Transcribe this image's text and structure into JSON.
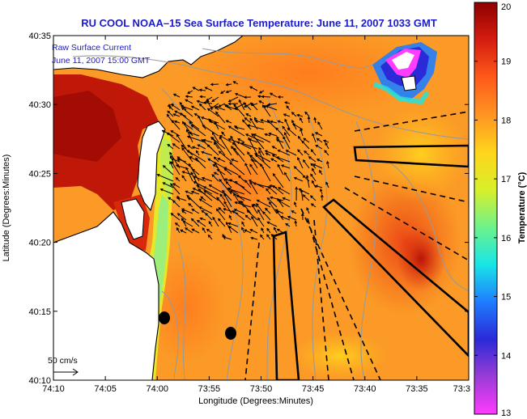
{
  "title": "RU COOL  NOAA–15  Sea Surface Temperature:  June 11, 2007 1033 GMT",
  "overlay": {
    "line1": "Raw Surface Current",
    "line2": "June 11, 2007 15:00 GMT"
  },
  "scale_label": "50 cm/s",
  "x_axis": {
    "label": "Longitude (Degrees:Minutes)",
    "ticks": [
      "74:10",
      "74:05",
      "74:00",
      "73:55",
      "73:50",
      "73:45",
      "73:40",
      "73:35",
      "73:3"
    ]
  },
  "y_axis": {
    "label": "Latitude (Degrees:Minutes)",
    "ticks": [
      "40:35",
      "40:30",
      "40:25",
      "40:20",
      "40:15",
      "40:10"
    ]
  },
  "colorbar": {
    "label": "Temperature (°C)",
    "ticks": [
      "20",
      "19",
      "18",
      "17",
      "16",
      "15",
      "14",
      "13"
    ],
    "stops": [
      "#8e0000",
      "#d51d10",
      "#ff5a1a",
      "#ff9422",
      "#ffd51c",
      "#d8ef2a",
      "#6ff28a",
      "#18e6e6",
      "#1f7dff",
      "#2a2ad8",
      "#9a3cd6",
      "#ff3cff"
    ]
  },
  "colors": {
    "sea_base": "#fb9a26",
    "land": "#ffffff",
    "coast": "#000000",
    "contour": "#9a9a9a",
    "text_blue": "#1a1acc"
  },
  "markers": [
    "filled-circle",
    "filled-circle"
  ]
}
